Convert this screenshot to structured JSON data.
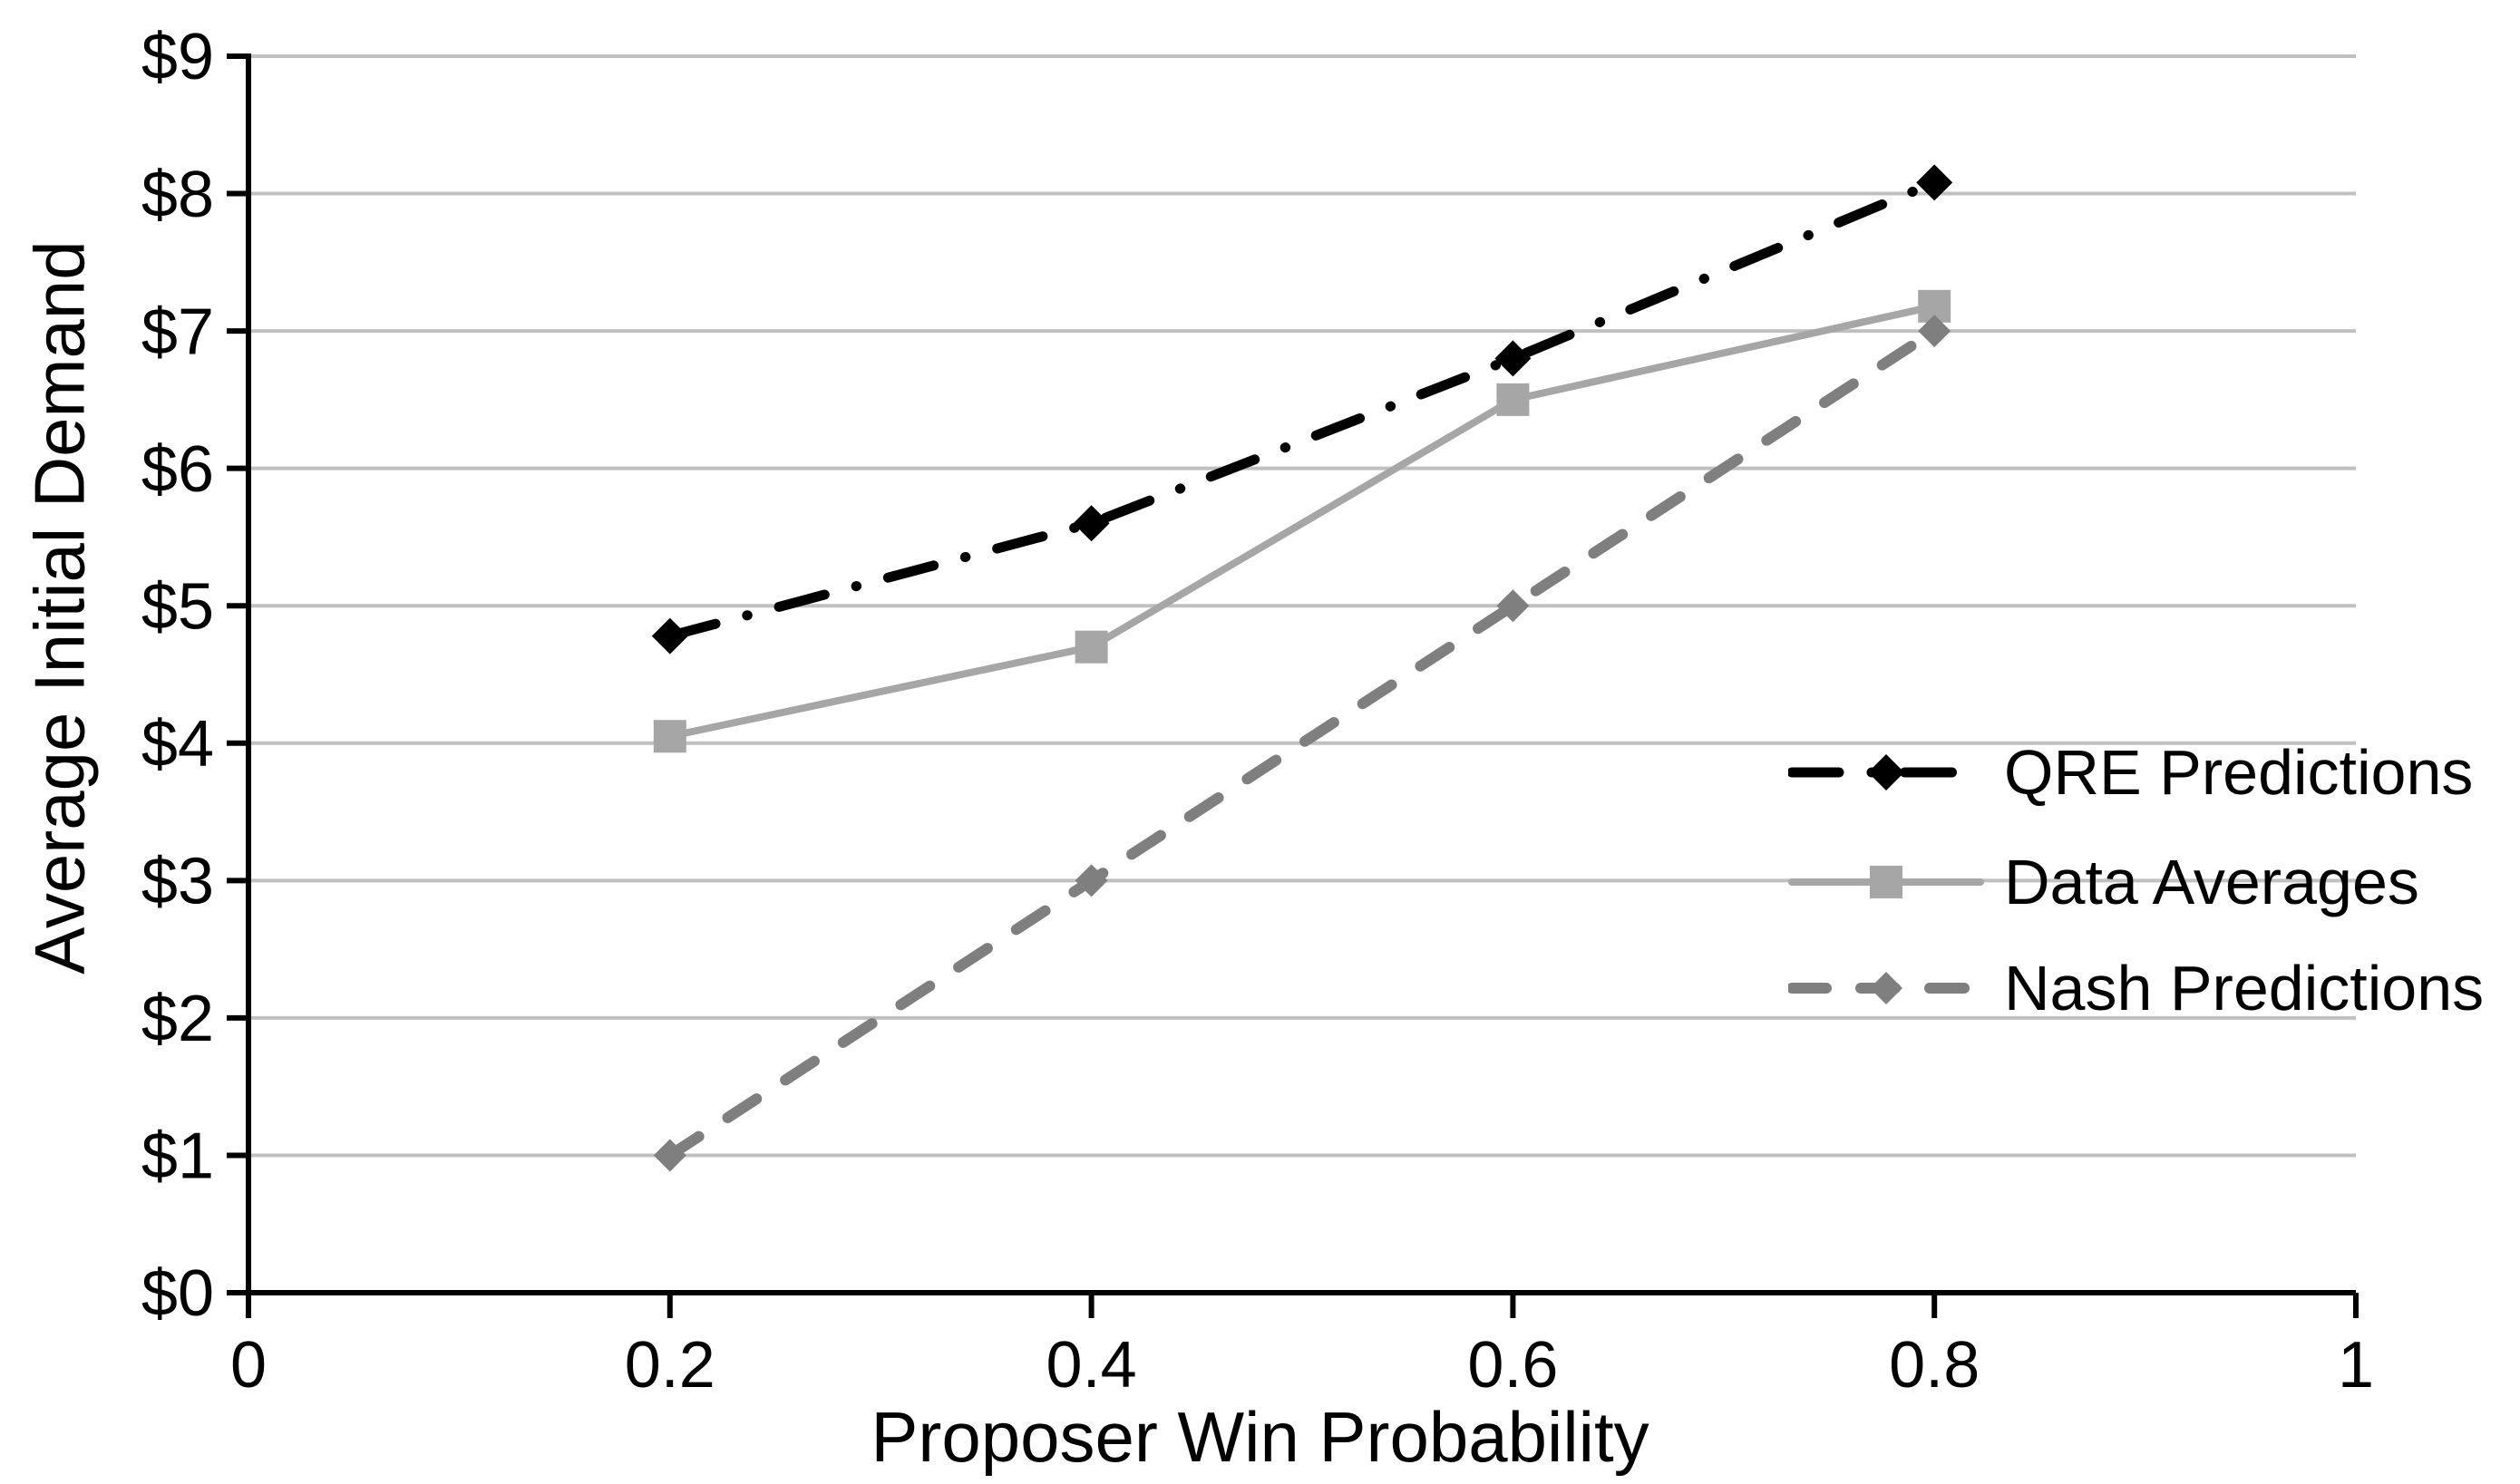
{
  "chart_data": {
    "type": "line",
    "x": [
      0.2,
      0.4,
      0.6,
      0.8
    ],
    "series": [
      {
        "name": "QRE Predictions",
        "values": [
          4.78,
          5.6,
          6.8,
          8.08
        ],
        "color": "#000000",
        "line_style": "dash-dot",
        "marker": "diamond"
      },
      {
        "name": "Data Averages",
        "values": [
          4.05,
          4.7,
          6.5,
          7.18
        ],
        "color": "#a6a6a6",
        "line_style": "solid",
        "marker": "square"
      },
      {
        "name": "Nash Predictions",
        "values": [
          1,
          3,
          5,
          7
        ],
        "color": "#7f7f7f",
        "line_style": "dashed",
        "marker": "diamond"
      }
    ],
    "xlabel": "Proposer Win Probability",
    "ylabel": "Average Initial Demand",
    "xlim": [
      0,
      1
    ],
    "ylim": [
      0,
      9
    ],
    "x_ticks": [
      0,
      0.2,
      0.4,
      0.6,
      0.8,
      1
    ],
    "x_tick_labels": [
      "0",
      "0.2",
      "0.4",
      "0.6",
      "0.8",
      "1"
    ],
    "y_ticks": [
      0,
      1,
      2,
      3,
      4,
      5,
      6,
      7,
      8,
      9
    ],
    "y_tick_labels": [
      "$0",
      "$1",
      "$2",
      "$3",
      "$4",
      "$5",
      "$6",
      "$7",
      "$8",
      "$9"
    ],
    "grid": "horizontal",
    "legend_position": "middle-right",
    "colors": {
      "background": "#ffffff",
      "axis": "#000000",
      "gridline": "#c0c0c0",
      "tick_label": "#000000"
    }
  }
}
